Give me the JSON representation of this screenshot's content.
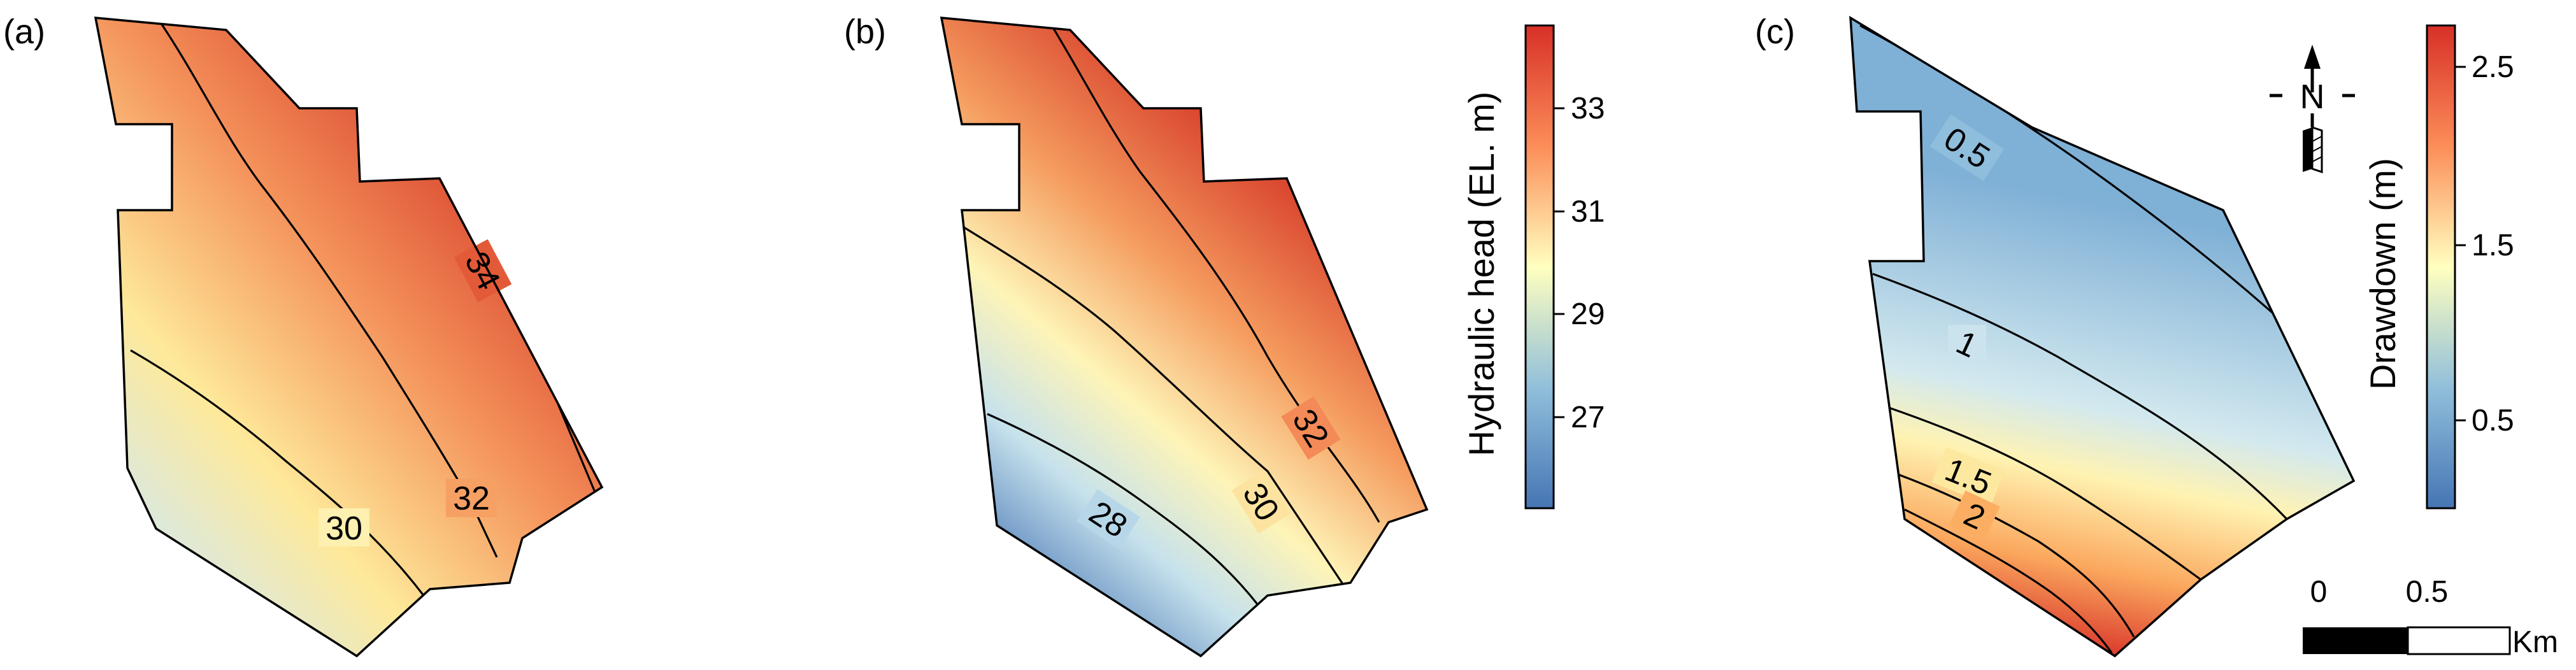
{
  "colors": {
    "high": "#d73027",
    "mid_high": "#fc8d59",
    "mid": "#ffffbf",
    "mid_low": "#91bfdb",
    "low": "#4575b4",
    "outline": "#000000"
  },
  "panels": [
    {
      "label": "(a)",
      "contours": [
        "30",
        "32",
        "34"
      ]
    },
    {
      "label": "(b)",
      "contours": [
        "28",
        "30",
        "32"
      ],
      "colorbar": {
        "title": "Hydraulic head (EL. m)",
        "ticks": [
          "33",
          "31",
          "29",
          "27"
        ]
      }
    },
    {
      "label": "(c)",
      "contours": [
        "0.5",
        "1",
        "1.5",
        "2"
      ],
      "colorbar": {
        "title": "Drawdown (m)",
        "ticks": [
          "2.5",
          "1.5",
          "0.5"
        ]
      }
    }
  ],
  "north_arrow": {
    "label": "N"
  },
  "scale_bar": {
    "labels": [
      "0",
      "0.5"
    ],
    "unit": "Km"
  }
}
